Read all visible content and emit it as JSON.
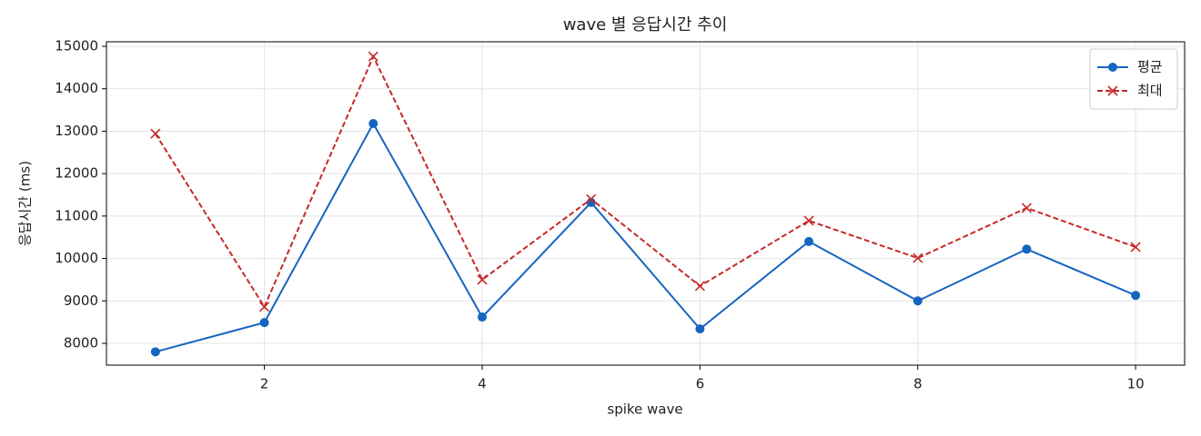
{
  "chart_data": {
    "type": "line",
    "title": "wave 별 응답시간 추이",
    "xlabel": "spike wave",
    "ylabel": "응답시간 (ms)",
    "x": [
      1,
      2,
      3,
      4,
      5,
      6,
      7,
      8,
      9,
      10
    ],
    "series": [
      {
        "name": "평균",
        "color": "#1565c0",
        "marker": "o",
        "dash": false,
        "values": [
          7800,
          8490,
          13180,
          8620,
          11320,
          8340,
          10400,
          9000,
          10220,
          9130
        ]
      },
      {
        "name": "최대",
        "color": "#c62828",
        "marker": "x",
        "dash": true,
        "values": [
          12940,
          8860,
          14760,
          9500,
          11400,
          9350,
          10890,
          10010,
          11190,
          10270
        ]
      }
    ],
    "xlim": [
      0.55,
      10.45
    ],
    "ylim": [
      7486,
      15107
    ],
    "xticks": [
      2,
      4,
      6,
      8,
      10
    ],
    "yticks": [
      8000,
      9000,
      10000,
      11000,
      12000,
      13000,
      14000,
      15000
    ],
    "grid": true,
    "legend": "upper right"
  }
}
